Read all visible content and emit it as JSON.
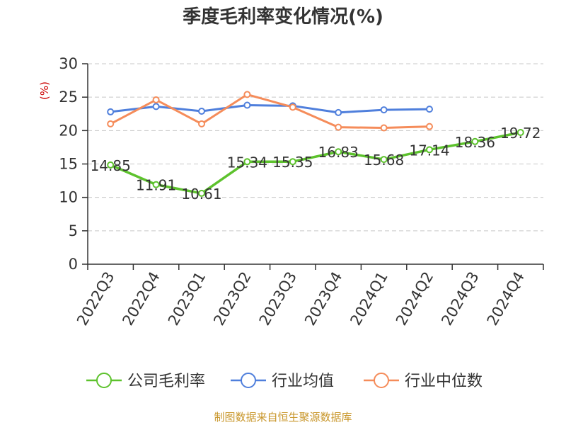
{
  "chart_data": {
    "type": "line",
    "title": "季度毛利率变化情况(%)",
    "ylabel": "(%)",
    "xlabel": "",
    "ylim": [
      0,
      30
    ],
    "yticks": [
      0,
      5,
      10,
      15,
      20,
      25,
      30
    ],
    "grid": true,
    "legend_position": "bottom",
    "categories": [
      "2022Q3",
      "2022Q4",
      "2023Q1",
      "2023Q2",
      "2023Q3",
      "2023Q4",
      "2024Q1",
      "2024Q2",
      "2024Q3",
      "2024Q4"
    ],
    "series": [
      {
        "name": "公司毛利率",
        "color": "#5dc22d",
        "values": [
          14.85,
          11.91,
          10.61,
          15.34,
          15.35,
          16.83,
          15.68,
          17.14,
          18.36,
          19.72
        ],
        "labels": [
          "14.85",
          "11.91",
          "10.61",
          "15.34",
          "15.35",
          "16.83",
          "15.68",
          "17.14",
          "18.36",
          "19.72"
        ]
      },
      {
        "name": "行业均值",
        "color": "#4f7fdc",
        "values": [
          22.8,
          23.6,
          22.9,
          23.8,
          23.7,
          22.7,
          23.1,
          23.2,
          null,
          null
        ]
      },
      {
        "name": "行业中位数",
        "color": "#f58c5a",
        "values": [
          21.0,
          24.6,
          21.0,
          25.4,
          23.5,
          20.5,
          20.4,
          20.6,
          null,
          null
        ]
      }
    ],
    "source": "制图数据来自恒生聚源数据库"
  }
}
